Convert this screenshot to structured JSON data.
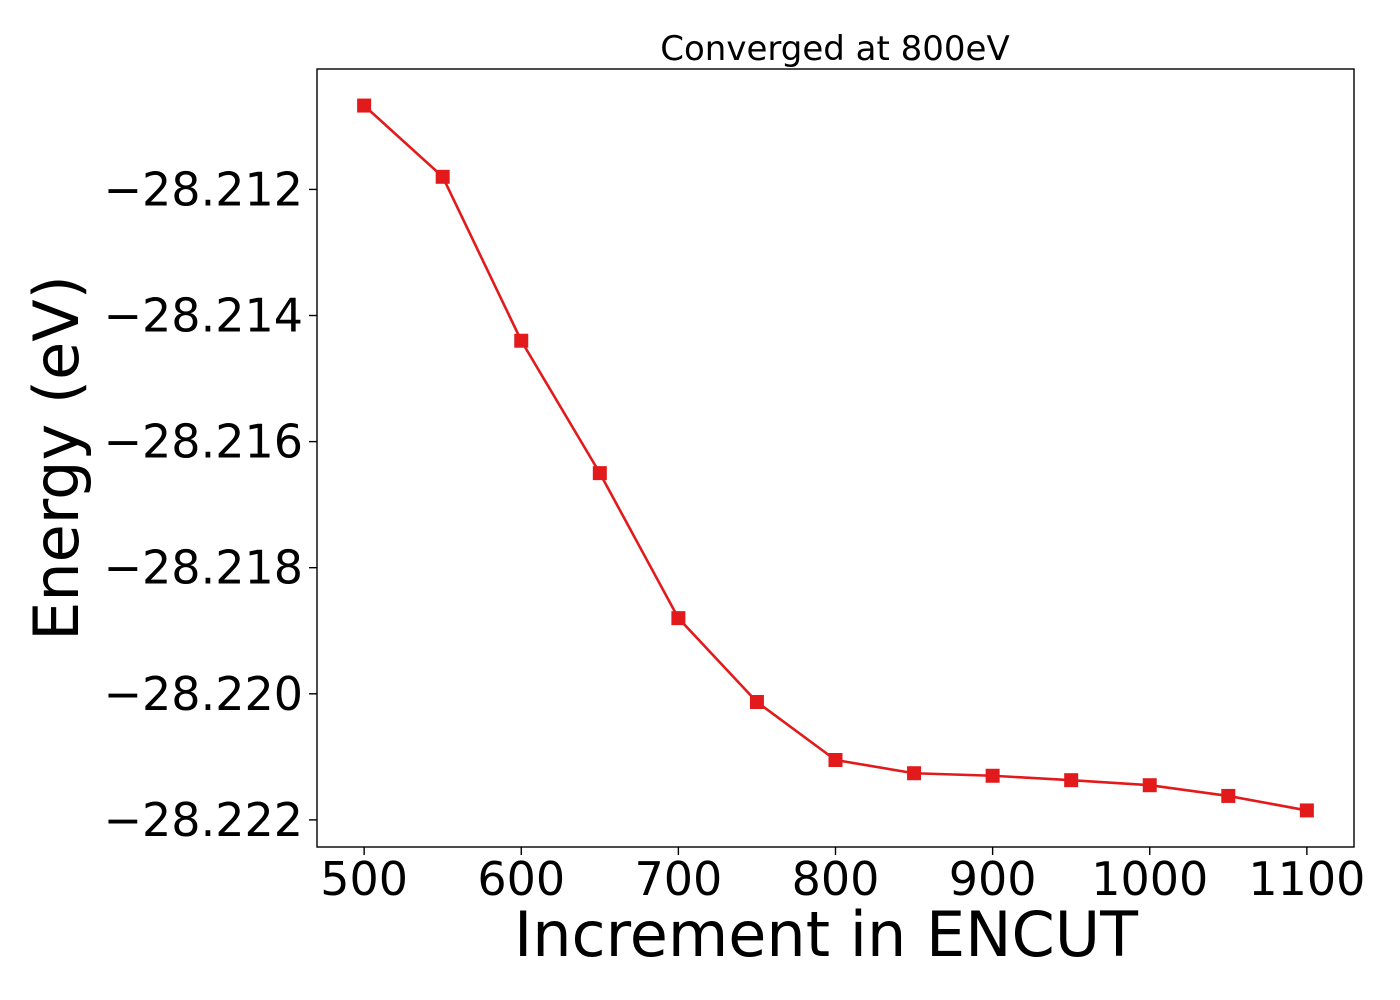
{
  "chart_data": {
    "type": "line",
    "title": "Converged at 800eV",
    "xlabel": "Increment in ENCUT",
    "ylabel": "Energy (eV)",
    "x": [
      500,
      550,
      600,
      650,
      700,
      750,
      800,
      850,
      900,
      950,
      1000,
      1050,
      1100
    ],
    "series": [
      {
        "values": [
          -28.21067,
          -28.2118,
          -28.2144,
          -28.2165,
          -28.2188,
          -28.22013,
          -28.22105,
          -28.22126,
          -28.2213,
          -28.22137,
          -28.22145,
          -28.22162,
          -28.22185
        ],
        "color": "#e31a1c",
        "marker": "square"
      }
    ],
    "xlim": [
      470,
      1130
    ],
    "ylim": [
      -28.22243,
      -28.21009
    ],
    "xticks": [
      500,
      600,
      700,
      800,
      900,
      1000,
      1100
    ],
    "xtick_labels": [
      "500",
      "600",
      "700",
      "800",
      "900",
      "1000",
      "1100"
    ],
    "yticks": [
      -28.212,
      -28.214,
      -28.216,
      -28.218,
      -28.22,
      -28.222
    ],
    "ytick_labels": [
      "−28.212",
      "−28.214",
      "−28.216",
      "−28.218",
      "−28.220",
      "−28.222"
    ],
    "grid": false,
    "legend": false
  }
}
